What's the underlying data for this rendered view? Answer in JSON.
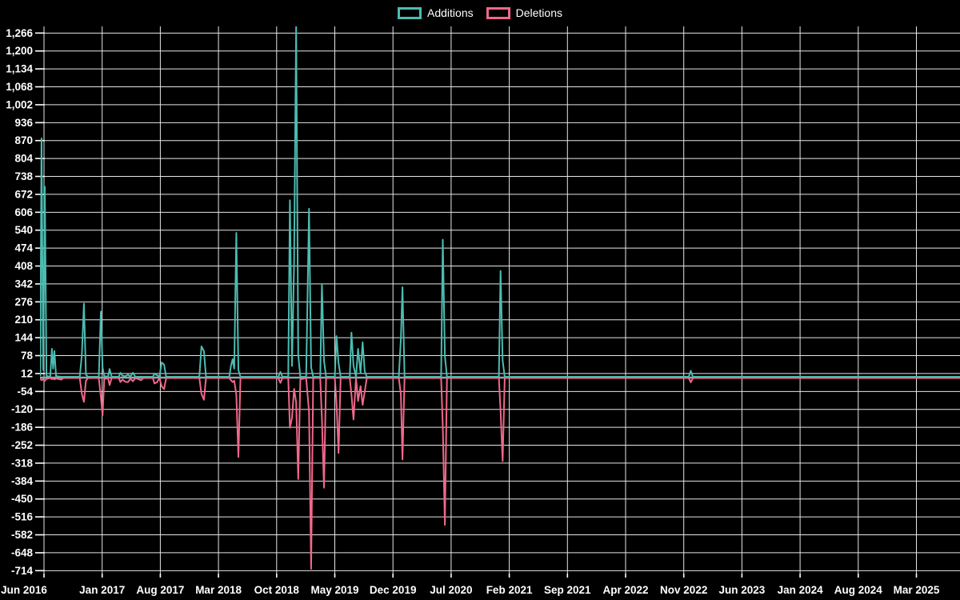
{
  "chart": {
    "legend": {
      "items": [
        {
          "id": "additions",
          "label": "Additions",
          "color": "#4cbcb2"
        },
        {
          "id": "deletions",
          "label": "Deletions",
          "color": "#f0688a"
        }
      ]
    },
    "colors": {
      "background": "#000000",
      "grid": "#e6e6e6",
      "additions": "#4cbcb2",
      "deletions": "#f0688a",
      "zero_baseline": "#8ca9b4",
      "text": "#ffffff"
    }
  },
  "chart_data": {
    "type": "line",
    "title": "",
    "legend_position": "top-center",
    "grid": true,
    "x_axis": {
      "first_tick": "2016-06",
      "tick_interval_months": 7,
      "tick_labels": [
        "Jun 2016",
        "Jan 2017",
        "Aug 2017",
        "Mar 2018",
        "Oct 2018",
        "May 2019",
        "Dec 2019",
        "Jul 2020",
        "Feb 2021",
        "Sep 2021",
        "Apr 2022",
        "Nov 2022",
        "Jun 2023",
        "Jan 2024",
        "Aug 2024",
        "Mar 2025"
      ]
    },
    "y_axis": {
      "range": [
        -736,
        1300
      ],
      "tick_step": 66,
      "tick_values": [
        1266,
        1200,
        1134,
        1068,
        1002,
        936,
        870,
        804,
        738,
        672,
        606,
        540,
        474,
        408,
        342,
        276,
        210,
        144,
        78,
        12,
        -54,
        -120,
        -186,
        -252,
        -318,
        -384,
        -450,
        -516,
        -582,
        -648,
        -714
      ],
      "tick_labels": [
        "1,266",
        "1,200",
        "1,134",
        "1,068",
        "1,002",
        "936",
        "870",
        "804",
        "738",
        "672",
        "606",
        "540",
        "474",
        "408",
        "342",
        "276",
        "210",
        "144",
        "78",
        "12",
        "-54",
        "-120",
        "-186",
        "-252",
        "-318",
        "-384",
        "-450",
        "-516",
        "-582",
        "-648",
        "-714"
      ]
    },
    "series": [
      {
        "name": "Additions",
        "color": "#4cbcb2"
      },
      {
        "name": "Deletions",
        "color": "#f0688a"
      }
    ],
    "points_format": [
      "months_since_2016_06",
      "additions",
      "deletions"
    ],
    "points": [
      [
        -0.45,
        2,
        -2
      ],
      [
        -0.3,
        878,
        -8
      ],
      [
        -0.1,
        25,
        -5
      ],
      [
        0.1,
        700,
        -10
      ],
      [
        0.3,
        3,
        -3
      ],
      [
        0.75,
        0,
        0
      ],
      [
        0.95,
        103,
        -4
      ],
      [
        1.1,
        30,
        -2
      ],
      [
        1.25,
        95,
        -5
      ],
      [
        1.45,
        2,
        -2
      ],
      [
        2.1,
        0,
        -6
      ],
      [
        2.3,
        0,
        0
      ],
      [
        4.3,
        0,
        0
      ],
      [
        4.55,
        80,
        -58
      ],
      [
        4.8,
        270,
        -88
      ],
      [
        5.05,
        8,
        -10
      ],
      [
        5.3,
        0,
        0
      ],
      [
        6.6,
        0,
        0
      ],
      [
        6.85,
        240,
        -70
      ],
      [
        7.05,
        35,
        -138
      ],
      [
        7.25,
        2,
        -4
      ],
      [
        7.7,
        0,
        0
      ],
      [
        7.9,
        29,
        -26
      ],
      [
        8.15,
        0,
        0
      ],
      [
        9.0,
        0,
        0
      ],
      [
        9.2,
        15,
        -15
      ],
      [
        9.45,
        4,
        -6
      ],
      [
        9.8,
        2,
        -14
      ],
      [
        10.1,
        8,
        -15
      ],
      [
        10.4,
        1,
        -3
      ],
      [
        10.7,
        15,
        -12
      ],
      [
        11.0,
        0,
        0
      ],
      [
        11.7,
        0,
        -8
      ],
      [
        11.95,
        0,
        0
      ],
      [
        13.1,
        0,
        0
      ],
      [
        13.3,
        12,
        -20
      ],
      [
        13.6,
        6,
        -16
      ],
      [
        13.9,
        0,
        0
      ],
      [
        14.15,
        53,
        -30
      ],
      [
        14.45,
        45,
        -41
      ],
      [
        14.7,
        0,
        0
      ],
      [
        18.7,
        0,
        0
      ],
      [
        18.95,
        112,
        -58
      ],
      [
        19.25,
        95,
        -80
      ],
      [
        19.5,
        0,
        0
      ],
      [
        22.3,
        0,
        0
      ],
      [
        22.5,
        40,
        -8
      ],
      [
        22.7,
        65,
        -15
      ],
      [
        22.9,
        30,
        -10
      ],
      [
        23.15,
        530,
        -60
      ],
      [
        23.4,
        25,
        -291
      ],
      [
        23.65,
        0,
        0
      ],
      [
        28.2,
        0,
        0
      ],
      [
        28.45,
        18,
        -18
      ],
      [
        28.7,
        0,
        0
      ],
      [
        29.4,
        0,
        0
      ],
      [
        29.6,
        650,
        -183
      ],
      [
        29.85,
        40,
        -147
      ],
      [
        30.1,
        420,
        -40
      ],
      [
        30.35,
        1290,
        -90
      ],
      [
        30.6,
        80,
        -372
      ],
      [
        30.85,
        0,
        -5
      ],
      [
        31.55,
        0,
        0
      ],
      [
        31.9,
        619,
        -125
      ],
      [
        32.15,
        35,
        -703
      ],
      [
        32.4,
        0,
        0
      ],
      [
        33.25,
        0,
        0
      ],
      [
        33.45,
        342,
        -150
      ],
      [
        33.7,
        60,
        -404
      ],
      [
        33.95,
        0,
        0
      ],
      [
        35.0,
        0,
        0
      ],
      [
        35.2,
        150,
        -90
      ],
      [
        35.45,
        50,
        -276
      ],
      [
        35.7,
        0,
        0
      ],
      [
        36.8,
        0,
        0
      ],
      [
        37.0,
        163,
        -60
      ],
      [
        37.25,
        40,
        -153
      ],
      [
        37.55,
        0,
        0
      ],
      [
        37.8,
        103,
        -85
      ],
      [
        38.1,
        15,
        -30
      ],
      [
        38.35,
        127,
        -99
      ],
      [
        38.6,
        20,
        -50
      ],
      [
        38.85,
        0,
        0
      ],
      [
        42.7,
        0,
        0
      ],
      [
        42.95,
        140,
        -60
      ],
      [
        43.15,
        330,
        -300
      ],
      [
        43.4,
        0,
        0
      ],
      [
        47.8,
        0,
        0
      ],
      [
        48.0,
        505,
        -180
      ],
      [
        48.25,
        77,
        -541
      ],
      [
        48.5,
        0,
        0
      ],
      [
        54.75,
        0,
        0
      ],
      [
        54.95,
        390,
        -120
      ],
      [
        55.2,
        60,
        -306
      ],
      [
        55.45,
        0,
        0
      ],
      [
        77.6,
        0,
        0
      ],
      [
        77.85,
        22,
        -16
      ],
      [
        78.1,
        0,
        0
      ],
      [
        110.3,
        0,
        0
      ]
    ]
  }
}
